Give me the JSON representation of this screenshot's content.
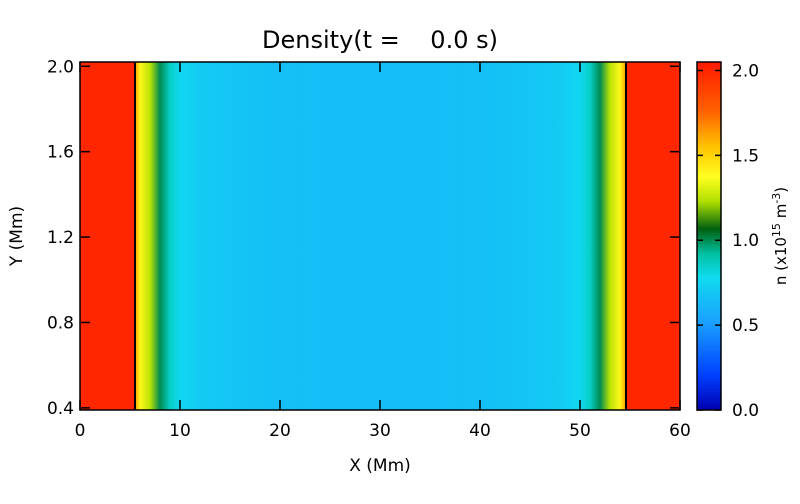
{
  "chart_data": {
    "type": "heatmap",
    "title": "Density(t =    0.0 s)",
    "xlabel": "X (Mm)",
    "ylabel": "Y (Mm)",
    "xlim": [
      0,
      60
    ],
    "ylim": [
      0.39,
      2.02
    ],
    "xticks": [
      0,
      10,
      20,
      30,
      40,
      50,
      60
    ],
    "xtick_labels": [
      "0",
      "10",
      "20",
      "30",
      "40",
      "50",
      "60"
    ],
    "yticks": [
      0.4,
      0.8,
      1.2,
      1.6,
      2.0
    ],
    "ytick_labels": [
      "0.4",
      "0.8",
      "1.2",
      "1.6",
      "2.0"
    ],
    "colorbar": {
      "label_prefix": "n (x10",
      "label_exp1": "15",
      "label_mid": " m",
      "label_exp2": "-3",
      "label_suffix": ")",
      "lim": [
        0,
        2.05
      ],
      "ticks": [
        0.0,
        0.5,
        1.0,
        1.5,
        2.0
      ],
      "tick_labels": [
        "0.0",
        "0.5",
        "1.0",
        "1.5",
        "2.0"
      ],
      "colormap": [
        [
          0.0,
          "#0000b0"
        ],
        [
          0.1,
          "#0040ff"
        ],
        [
          0.25,
          "#1a9fff"
        ],
        [
          0.38,
          "#10dbef"
        ],
        [
          0.45,
          "#00c0a0"
        ],
        [
          0.52,
          "#006010"
        ],
        [
          0.6,
          "#b0e000"
        ],
        [
          0.67,
          "#ffff20"
        ],
        [
          0.76,
          "#ffc000"
        ],
        [
          0.86,
          "#ff6000"
        ],
        [
          1.0,
          "#ff1a00"
        ]
      ]
    },
    "density_profile_x": [
      0,
      5.5,
      5.6,
      6.0,
      7.0,
      8.0,
      9.0,
      10.0,
      12.0,
      15.0,
      20.0,
      25.0,
      30.0,
      35.0,
      40.0,
      45.0,
      48.0,
      50.0,
      51.0,
      52.0,
      53.0,
      54.0,
      54.5,
      54.6,
      60
    ],
    "density_profile_n": [
      2.0,
      2.0,
      1.6,
      1.4,
      1.25,
      1.0,
      0.85,
      0.76,
      0.71,
      0.68,
      0.66,
      0.65,
      0.65,
      0.65,
      0.66,
      0.68,
      0.71,
      0.76,
      0.85,
      1.0,
      1.25,
      1.4,
      1.6,
      2.0,
      2.0
    ],
    "boundary_lines_x": [
      5.5,
      54.6
    ]
  }
}
